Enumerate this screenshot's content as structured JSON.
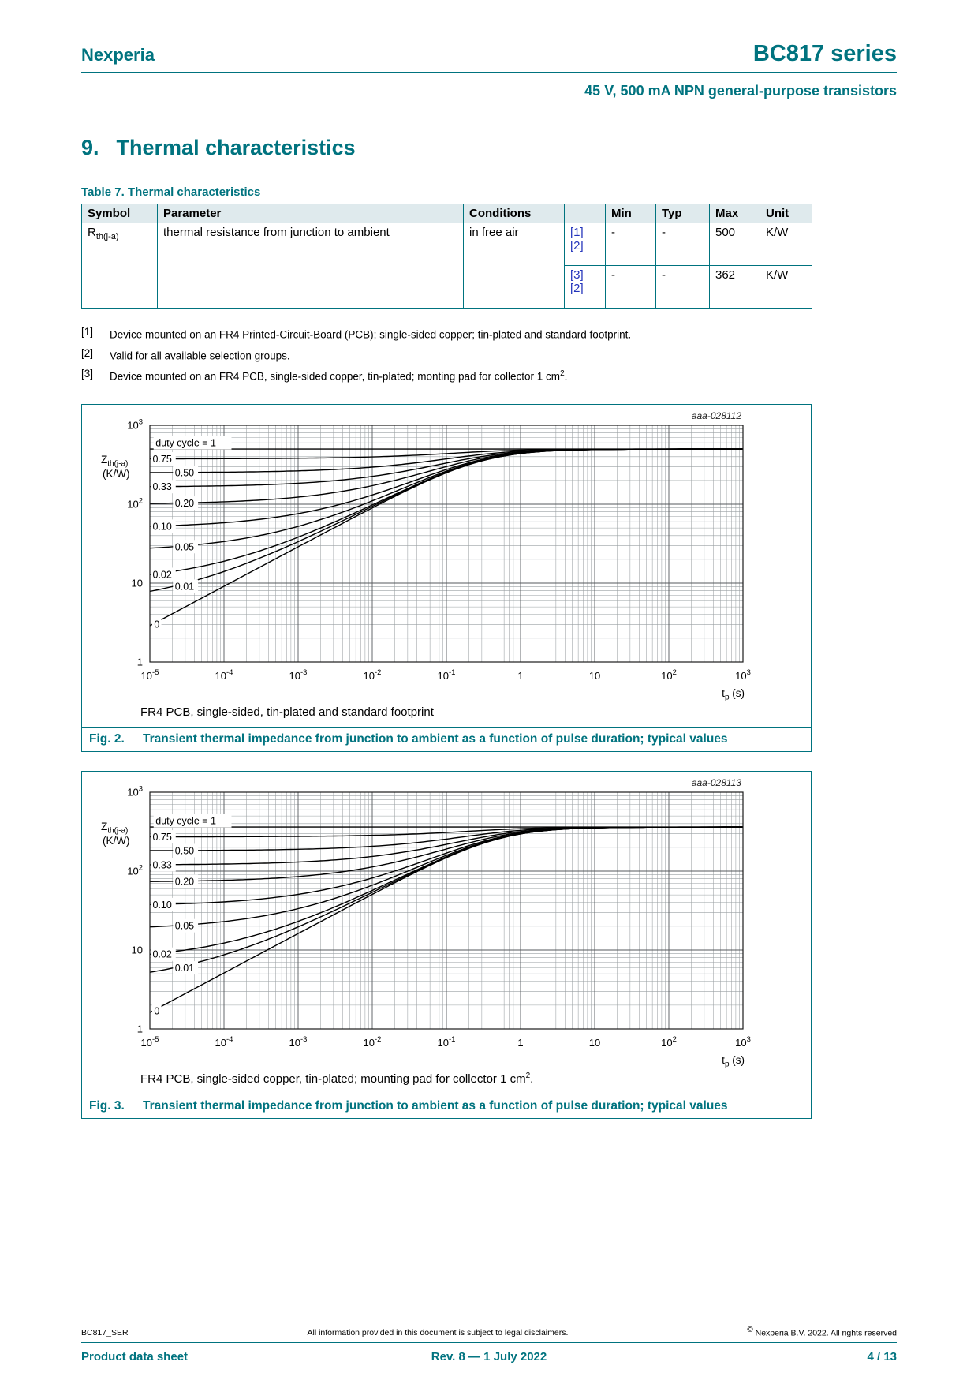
{
  "page": {
    "brand": "Nexperia",
    "doc_title": "BC817 series",
    "doc_subtitle": "45 V, 500 mA NPN general-purpose transistors"
  },
  "section": {
    "number": "9.",
    "title": "Thermal characteristics"
  },
  "table7": {
    "caption": "Table 7. Thermal characteristics",
    "headers": [
      "Symbol",
      "Parameter",
      "Conditions",
      "",
      "Min",
      "Typ",
      "Max",
      "Unit"
    ],
    "symbol": {
      "base": "R",
      "sub": "th(j-a)"
    },
    "parameter": "thermal resistance from junction to ambient",
    "conditions": "in free air",
    "rows": [
      {
        "ref1": "[1]",
        "ref2": "[2]",
        "min": "-",
        "typ": "-",
        "max": "500",
        "unit": "K/W"
      },
      {
        "ref1": "[3]",
        "ref2": "[2]",
        "min": "-",
        "typ": "-",
        "max": "362",
        "unit": "K/W"
      }
    ]
  },
  "footnotes": [
    {
      "marker": "[1]",
      "text": "Device mounted on an FR4 Printed-Circuit-Board (PCB); single-sided copper; tin-plated and standard footprint.",
      "sup": "",
      "tail": ""
    },
    {
      "marker": "[2]",
      "text": "Valid for all available selection groups.",
      "sup": "",
      "tail": ""
    },
    {
      "marker": "[3]",
      "text": "Device mounted on an FR4 PCB, single-sided copper, tin-plated; monting pad for collector 1 cm",
      "sup": "2",
      "tail": "."
    }
  ],
  "figures": [
    {
      "fig_label": "Fig. 2.",
      "title": "Transient thermal impedance from junction to ambient as a function of pulse duration; typical values",
      "note": "FR4 PCB, single-sided, tin-plated and standard footprint",
      "note_sup": "",
      "note_tail": ""
    },
    {
      "fig_label": "Fig. 3.",
      "title": "Transient thermal impedance from junction to ambient as a function of pulse duration; typical values",
      "note": "FR4 PCB, single-sided copper, tin-plated; mounting pad for collector 1 cm",
      "note_sup": "2",
      "note_tail": "."
    }
  ],
  "chart_data": [
    {
      "type": "line",
      "plot_id": "aaa-028112",
      "title": "Transient thermal impedance from junction to ambient as a function of pulse duration; typical values",
      "xlabel": "tp (s)",
      "ylabel": "Zth(j-a) (K/W)",
      "xlabel_base": "t",
      "xlabel_sub": "p",
      "xlabel_tail": " (s)",
      "ylabel_base": "Z",
      "ylabel_sub": "th(j-a)",
      "ylabel_unit": "(K/W)",
      "xscale": "log",
      "yscale": "log",
      "x_exp_range": [
        -5,
        3
      ],
      "y_exp_range": [
        0,
        3
      ],
      "xlim": [
        1e-05,
        1000.0
      ],
      "ylim": [
        1,
        1000.0
      ],
      "rth_k_per_w": 500,
      "tau_s": 0.3,
      "curves": [
        {
          "duty_cycle": 1,
          "label": "duty cycle = 1",
          "label_x": 1.15e-05,
          "label_dy": -8,
          "flat_z_k_per_w": 500
        },
        {
          "duty_cycle": 0.75,
          "label": "0.75",
          "label_x": 1.05e-05,
          "label_dy": 0,
          "flat_z_k_per_w": 375
        },
        {
          "duty_cycle": 0.5,
          "label": "0.50",
          "label_x": 2.1e-05,
          "label_dy": 0,
          "flat_z_k_per_w": 250
        },
        {
          "duty_cycle": 0.33,
          "label": "0.33",
          "label_x": 1.05e-05,
          "label_dy": 0,
          "flat_z_k_per_w": 165
        },
        {
          "duty_cycle": 0.2,
          "label": "0.20",
          "label_x": 2.1e-05,
          "label_dy": 0,
          "flat_z_k_per_w": 100
        },
        {
          "duty_cycle": 0.1,
          "label": "0.10",
          "label_x": 1.05e-05,
          "label_dy": 0,
          "flat_z_k_per_w": 50
        },
        {
          "duty_cycle": 0.05,
          "label": "0.05",
          "label_x": 2.1e-05,
          "label_dy": 0,
          "flat_z_k_per_w": 25
        },
        {
          "duty_cycle": 0.02,
          "label": "0.02",
          "label_x": 1.05e-05,
          "label_dy": 0,
          "flat_z_k_per_w": 10
        },
        {
          "duty_cycle": 0.01,
          "label": "0.01",
          "label_x": 2.1e-05,
          "label_dy": 0,
          "flat_z_k_per_w": 5
        },
        {
          "duty_cycle": 0,
          "label": "0",
          "label_x": 1.1e-05,
          "label_dy": 0,
          "flat_z_k_per_w": null
        }
      ]
    },
    {
      "type": "line",
      "plot_id": "aaa-028113",
      "title": "Transient thermal impedance from junction to ambient as a function of pulse duration; typical values",
      "xlabel": "tp (s)",
      "ylabel": "Zth(j-a) (K/W)",
      "xlabel_base": "t",
      "xlabel_sub": "p",
      "xlabel_tail": " (s)",
      "ylabel_base": "Z",
      "ylabel_sub": "th(j-a)",
      "ylabel_unit": "(K/W)",
      "xscale": "log",
      "yscale": "log",
      "x_exp_range": [
        -5,
        3
      ],
      "y_exp_range": [
        0,
        3
      ],
      "xlim": [
        1e-05,
        1000.0
      ],
      "ylim": [
        1,
        1000.0
      ],
      "rth_k_per_w": 362,
      "tau_s": 0.5,
      "curves": [
        {
          "duty_cycle": 1,
          "label": "duty cycle = 1",
          "label_x": 1.15e-05,
          "label_dy": -8,
          "flat_z_k_per_w": 362
        },
        {
          "duty_cycle": 0.75,
          "label": "0.75",
          "label_x": 1.05e-05,
          "label_dy": 0,
          "flat_z_k_per_w": 272
        },
        {
          "duty_cycle": 0.5,
          "label": "0.50",
          "label_x": 2.1e-05,
          "label_dy": 0,
          "flat_z_k_per_w": 181
        },
        {
          "duty_cycle": 0.33,
          "label": "0.33",
          "label_x": 1.05e-05,
          "label_dy": 0,
          "flat_z_k_per_w": 119
        },
        {
          "duty_cycle": 0.2,
          "label": "0.20",
          "label_x": 2.1e-05,
          "label_dy": 0,
          "flat_z_k_per_w": 72.4
        },
        {
          "duty_cycle": 0.1,
          "label": "0.10",
          "label_x": 1.05e-05,
          "label_dy": 0,
          "flat_z_k_per_w": 36.2
        },
        {
          "duty_cycle": 0.05,
          "label": "0.05",
          "label_x": 2.1e-05,
          "label_dy": 0,
          "flat_z_k_per_w": 18.1
        },
        {
          "duty_cycle": 0.02,
          "label": "0.02",
          "label_x": 1.05e-05,
          "label_dy": 0,
          "flat_z_k_per_w": 7.2
        },
        {
          "duty_cycle": 0.01,
          "label": "0.01",
          "label_x": 2.1e-05,
          "label_dy": 0,
          "flat_z_k_per_w": 3.6
        },
        {
          "duty_cycle": 0,
          "label": "0",
          "label_x": 1.1e-05,
          "label_dy": 0,
          "flat_z_k_per_w": null
        }
      ]
    }
  ],
  "footer": {
    "doc_id": "BC817_SER",
    "disclaimer": "All information provided in this document is subject to legal disclaimers.",
    "copyright_sup": "©",
    "copyright": " Nexperia B.V. 2022. All rights reserved",
    "type": "Product data sheet",
    "revision": "Rev. 8 — 1 July 2022",
    "page_num": "4 / 13"
  }
}
